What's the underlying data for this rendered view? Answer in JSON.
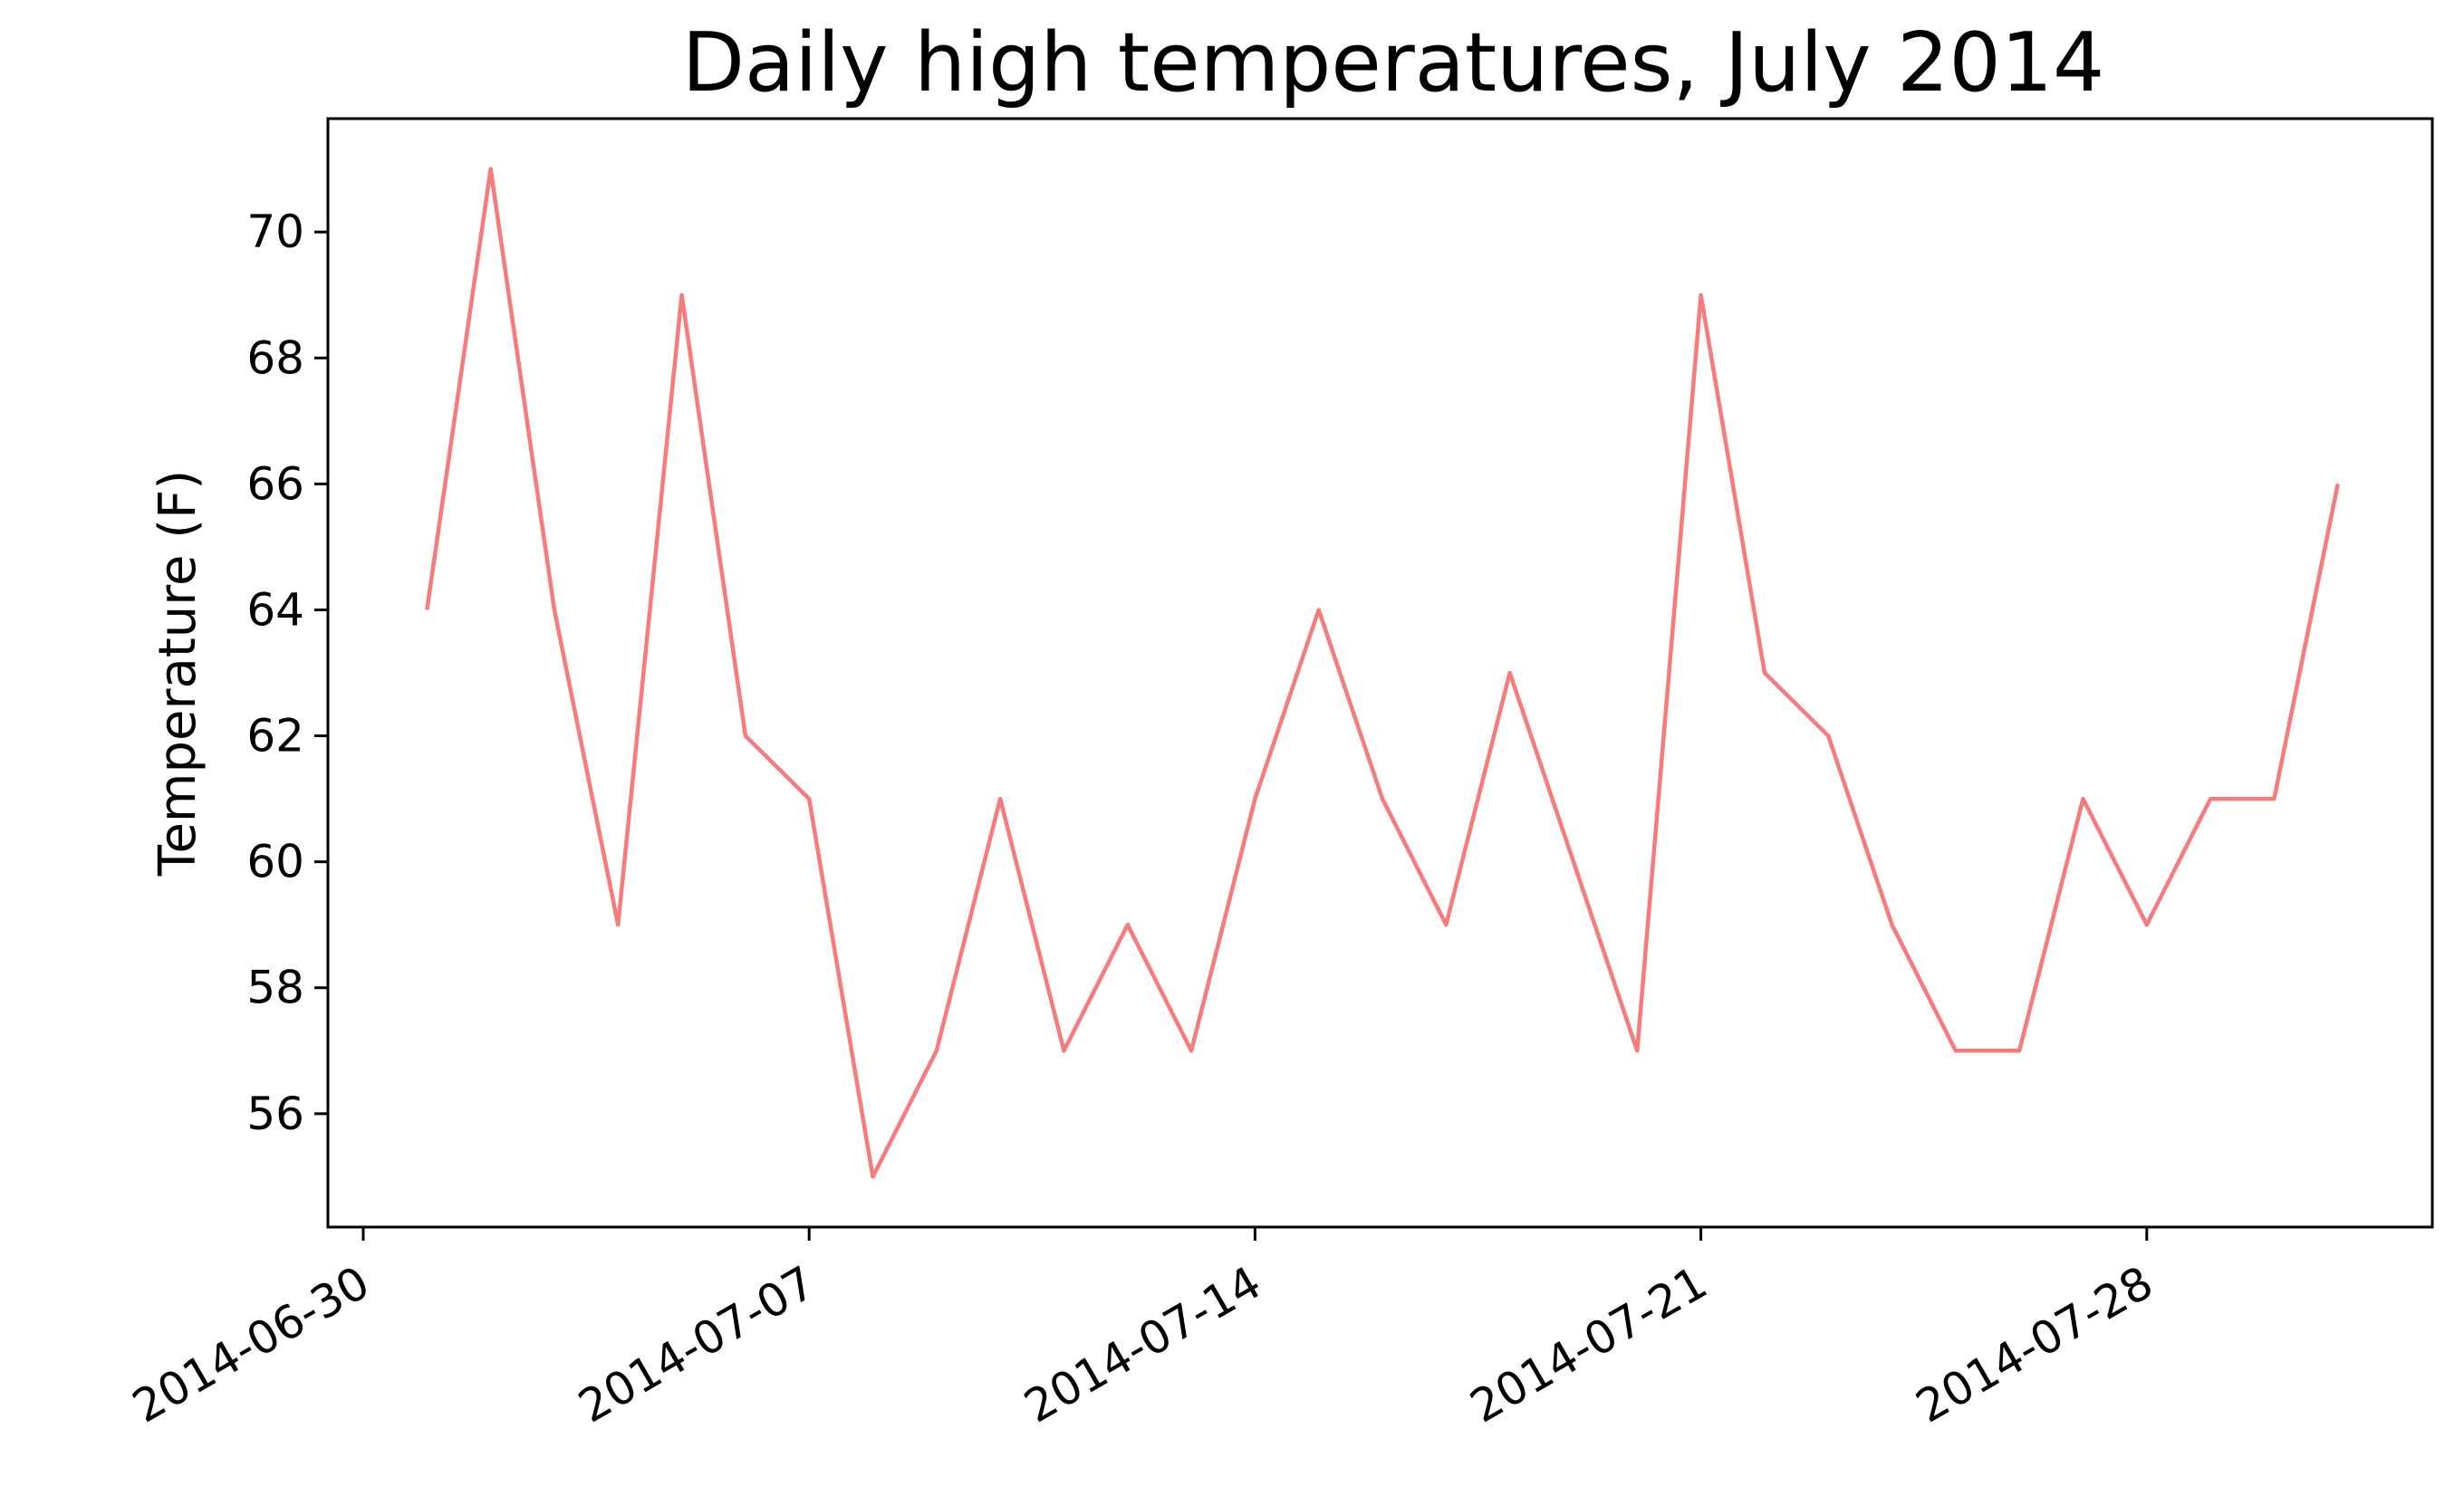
{
  "chart_data": {
    "type": "line",
    "title": "Daily high temperatures, July 2014",
    "xlabel": "",
    "ylabel": "Temperature (F)",
    "xlim": [
      "2014-06-30",
      "2014-08-01"
    ],
    "ylim": [
      54.2,
      71.8
    ],
    "x_ticks": [
      "2014-06-30",
      "2014-07-07",
      "2014-07-14",
      "2014-07-21",
      "2014-07-28"
    ],
    "y_ticks": [
      56,
      58,
      60,
      62,
      64,
      66,
      68,
      70
    ],
    "grid": false,
    "line_color": "#f77b7b",
    "x": [
      "2014-07-01",
      "2014-07-02",
      "2014-07-03",
      "2014-07-04",
      "2014-07-05",
      "2014-07-06",
      "2014-07-07",
      "2014-07-08",
      "2014-07-09",
      "2014-07-10",
      "2014-07-11",
      "2014-07-12",
      "2014-07-13",
      "2014-07-14",
      "2014-07-15",
      "2014-07-16",
      "2014-07-17",
      "2014-07-18",
      "2014-07-19",
      "2014-07-20",
      "2014-07-21",
      "2014-07-22",
      "2014-07-23",
      "2014-07-24",
      "2014-07-25",
      "2014-07-26",
      "2014-07-27",
      "2014-07-28",
      "2014-07-29",
      "2014-07-30",
      "2014-07-31"
    ],
    "series": [
      {
        "values": [
          64,
          71,
          64,
          59,
          69,
          62,
          61,
          55,
          57,
          61,
          57,
          59,
          57,
          61,
          64,
          61,
          59,
          63,
          60,
          57,
          69,
          63,
          62,
          59,
          57,
          57,
          61,
          59,
          61,
          61,
          66
        ]
      }
    ]
  }
}
